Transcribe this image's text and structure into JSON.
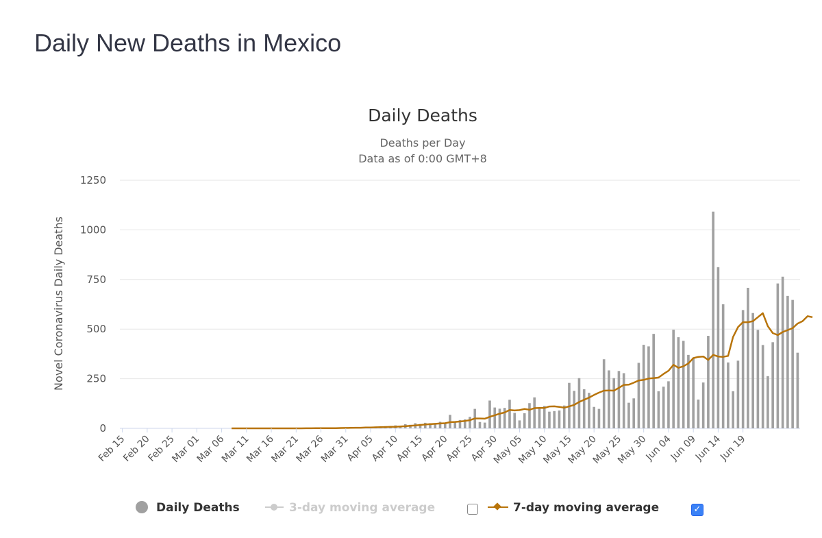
{
  "page": {
    "title": "Daily New Deaths in Mexico"
  },
  "legend": {
    "daily": "Daily Deaths",
    "ma3": "3-day moving average",
    "ma7": "7-day moving average",
    "ma3_checked": false,
    "ma7_checked": true
  },
  "colors": {
    "bars": "#a0a0a0",
    "ma7": "#b8740a",
    "ma3_disabled": "#cccccc",
    "grid": "#e6e6e6",
    "checkbox": "#3b82f6"
  },
  "chart_data": {
    "type": "bar",
    "title": "Daily Deaths",
    "subtitle": [
      "Deaths per Day",
      "Data as of 0:00 GMT+8"
    ],
    "ylabel": "Novel Coronavirus Daily Deaths",
    "xlabel": "",
    "ylim": [
      0,
      1250
    ],
    "yticks": [
      0,
      250,
      500,
      750,
      1000,
      1250
    ],
    "grid": true,
    "legend_position": "bottom",
    "x_start": "2020-02-15",
    "x_end": "2020-06-21",
    "xtick_labels": [
      "Feb 15",
      "Feb 20",
      "Feb 25",
      "Mar 01",
      "Mar 06",
      "Mar 11",
      "Mar 16",
      "Mar 21",
      "Mar 26",
      "Mar 31",
      "Apr 05",
      "Apr 10",
      "Apr 15",
      "Apr 20",
      "Apr 25",
      "Apr 30",
      "May 05",
      "May 10",
      "May 15",
      "May 20",
      "May 25",
      "May 30",
      "Jun 04",
      "Jun 09",
      "Jun 14",
      "Jun 19"
    ],
    "series": [
      {
        "name": "Daily Deaths",
        "type": "bar",
        "values": [
          0,
          0,
          0,
          0,
          0,
          0,
          0,
          0,
          0,
          0,
          0,
          0,
          0,
          0,
          0,
          0,
          0,
          0,
          0,
          0,
          0,
          0,
          0,
          0,
          0,
          0,
          0,
          0,
          0,
          0,
          0,
          0,
          0,
          0,
          0,
          1,
          0,
          1,
          0,
          2,
          1,
          1,
          2,
          1,
          3,
          4,
          3,
          4,
          1,
          7,
          4,
          9,
          8,
          11,
          10,
          15,
          12,
          21,
          18,
          26,
          22,
          28,
          26,
          23,
          33,
          25,
          68,
          36,
          42,
          45,
          58,
          98,
          32,
          29,
          140,
          105,
          99,
          103,
          144,
          78,
          40,
          76,
          127,
          156,
          105,
          113,
          84,
          87,
          90,
          115,
          229,
          189,
          253,
          197,
          179,
          108,
          98,
          348,
          292,
          253,
          289,
          278,
          129,
          151,
          330,
          421,
          413,
          476,
          187,
          210,
          237,
          497,
          459,
          441,
          370,
          356,
          145,
          231,
          466,
          1092,
          812,
          625,
          332,
          187,
          341,
          596,
          708,
          581,
          496,
          420,
          263,
          434,
          730,
          764,
          667,
          647,
          381
        ]
      },
      {
        "name": "7-day moving average",
        "type": "line",
        "values": [
          0,
          0,
          0,
          0,
          0,
          0,
          0,
          0,
          0,
          0,
          0,
          0,
          0,
          0,
          0,
          0,
          0,
          0,
          0,
          0,
          0,
          0,
          0,
          0,
          0,
          0,
          0,
          0,
          0,
          0,
          0,
          0,
          0,
          0,
          0,
          0.1,
          0.1,
          0.3,
          0.3,
          0.6,
          0.7,
          0.9,
          1.1,
          1.1,
          1.6,
          2.0,
          2.3,
          3.0,
          3.0,
          4.0,
          4.2,
          5.3,
          5.9,
          6.6,
          7.6,
          8.0,
          9.5,
          10.8,
          13.0,
          15.0,
          16.8,
          19.2,
          21.0,
          22.8,
          24.6,
          26.0,
          31.0,
          32.3,
          34.7,
          37.2,
          41.0,
          49.6,
          49.6,
          48.6,
          58.0,
          66.0,
          74.0,
          80.0,
          92.6,
          90.0,
          92.0,
          97.6,
          93.6,
          102.0,
          103.0,
          102.6,
          110.0,
          111.0,
          108.0,
          104.0,
          111.0,
          118.0,
          133.0,
          144.0,
          155.0,
          168.0,
          180.0,
          190.0,
          191.0,
          190.0,
          204.0,
          219.0,
          220.0,
          230.0,
          241.0,
          244.0,
          251.0,
          253.0,
          256.0,
          274.0,
          290.0,
          320.0,
          305.0,
          313.0,
          327.0,
          354.0,
          360.0,
          362.0,
          345.0,
          370.0,
          362.0,
          360.0,
          365.0,
          460.0,
          510.0,
          535.0,
          535.0,
          540.0,
          560.0,
          580.0,
          515.0,
          480.0,
          470.0,
          485.0,
          495.0,
          505.0,
          528.0,
          540.0,
          565.0,
          560.0
        ]
      }
    ]
  }
}
